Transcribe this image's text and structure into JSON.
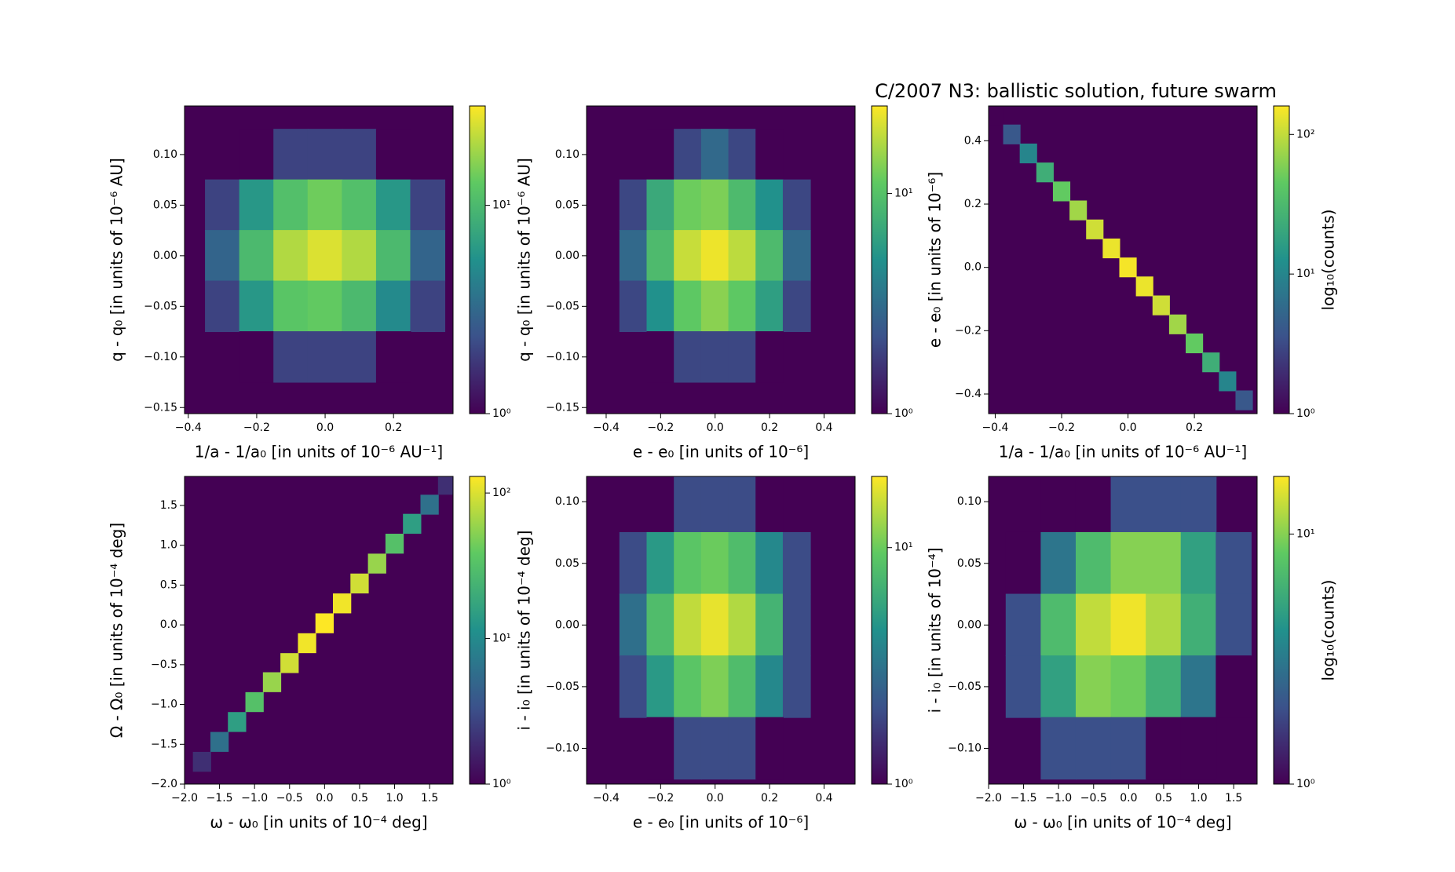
{
  "chart_data": [
    {
      "type": "hexbin",
      "xlabel": "1/a - 1/a₀ [in units of 10⁻⁶ AU⁻¹]",
      "ylabel": "q - q₀ [in units of 10⁻⁶ AU]",
      "xlim": [
        -0.411,
        0.374
      ],
      "ylim": [
        -0.156,
        0.148
      ],
      "xticks": [
        {
          "value": -0.4,
          "label": "−0.4"
        },
        {
          "value": -0.2,
          "label": "−0.2"
        },
        {
          "value": 0,
          "label": "0.0"
        },
        0.2
      ],
      "yticks": [
        {
          "value": -0.15,
          "label": "−0.15"
        },
        {
          "value": -0.1,
          "label": "−0.10"
        },
        {
          "value": -0.05,
          "label": "−0.05"
        },
        {
          "value": 0,
          "label": "0.00"
        },
        0.05,
        {
          "value": 0.1,
          "label": "0.10"
        }
      ],
      "x": [
        -0.2,
        -0.1,
        0,
        0.1,
        0.2,
        -0.3,
        -0.2,
        -0.1,
        0,
        0.1,
        0.2,
        0.3,
        -0.3,
        -0.2,
        -0.1,
        0,
        0.1,
        0.2,
        0.3,
        -0.3,
        -0.2,
        -0.1,
        0,
        0.1,
        0.2,
        0.3,
        -0.2,
        -0.1,
        0,
        0.1,
        0.2
      ],
      "y": [
        0.1,
        0.1,
        0.1,
        0.1,
        0.1,
        0.05,
        0.05,
        0.05,
        0.05,
        0.05,
        0.05,
        0.05,
        0,
        0,
        0,
        0,
        0,
        0,
        0,
        -0.05,
        -0.05,
        -0.05,
        -0.05,
        -0.05,
        -0.05,
        -0.05,
        -0.1,
        -0.1,
        -0.1,
        -0.1,
        -0.1
      ],
      "values": [
        1,
        2,
        2,
        2,
        1,
        2,
        6,
        11,
        14,
        11,
        6,
        2,
        3,
        10,
        20,
        25,
        20,
        10,
        3,
        2,
        6,
        12,
        13,
        10,
        5,
        2,
        1,
        2,
        2,
        2,
        1
      ],
      "colormap": "viridis",
      "color_scale": "log",
      "clim": [
        1,
        30
      ],
      "cticks": [
        {
          "value": 1,
          "label": "10⁰"
        },
        {
          "value": 10,
          "label": "10¹"
        }
      ]
    },
    {
      "type": "hexbin",
      "xlabel": "e - e₀ [in units of 10⁻⁶]",
      "ylabel": "q - q₀ [in units of 10⁻⁶ AU]",
      "xlim": [
        -0.472,
        0.514
      ],
      "ylim": [
        -0.156,
        0.148
      ],
      "xticks": [
        {
          "value": -0.4,
          "label": "−0.4"
        },
        {
          "value": -0.2,
          "label": "−0.2"
        },
        {
          "value": 0,
          "label": "0.0"
        },
        0.2,
        0.4
      ],
      "yticks": [
        {
          "value": -0.15,
          "label": "−0.15"
        },
        {
          "value": -0.1,
          "label": "−0.10"
        },
        {
          "value": -0.05,
          "label": "−0.05"
        },
        {
          "value": 0,
          "label": "0.00"
        },
        0.05,
        {
          "value": 0.1,
          "label": "0.10"
        }
      ],
      "x": [
        -0.2,
        -0.1,
        0,
        0.1,
        0.2,
        -0.3,
        -0.2,
        -0.1,
        0,
        0.1,
        0.2,
        0.3,
        -0.3,
        -0.2,
        -0.1,
        0,
        0.1,
        0.2,
        0.3,
        -0.3,
        -0.2,
        -0.1,
        0,
        0.1,
        0.2,
        0.3,
        -0.2,
        -0.1,
        0,
        0.1,
        0.2
      ],
      "y": [
        0.1,
        0.1,
        0.1,
        0.1,
        0.1,
        0.05,
        0.05,
        0.05,
        0.05,
        0.05,
        0.05,
        0.05,
        0,
        0,
        0,
        0,
        0,
        0,
        0,
        -0.05,
        -0.05,
        -0.05,
        -0.05,
        -0.05,
        -0.05,
        -0.05,
        -0.1,
        -0.1,
        -0.1,
        -0.1,
        -0.1
      ],
      "values": [
        1,
        2,
        3,
        2,
        1,
        2,
        7,
        12,
        13,
        9,
        5,
        2,
        3,
        9,
        19,
        23,
        18,
        9,
        3,
        2,
        5,
        11,
        14,
        11,
        6,
        2,
        1,
        2,
        2,
        2,
        1
      ],
      "colormap": "viridis",
      "color_scale": "log",
      "clim": [
        1,
        25
      ],
      "cticks": [
        {
          "value": 1,
          "label": "10⁰"
        },
        {
          "value": 10,
          "label": "10¹"
        }
      ]
    },
    {
      "type": "hexbin",
      "title": "C/2007 N3:  ballistic solution, future swarm",
      "xlabel": "1/a - 1/a₀ [in units of 10⁻⁶ AU⁻¹]",
      "ylabel": "e - e₀ [in units of 10⁻⁶]",
      "xlim": [
        -0.42,
        0.389
      ],
      "ylim": [
        -0.462,
        0.51
      ],
      "xticks": [
        {
          "value": -0.4,
          "label": "−0.4"
        },
        {
          "value": -0.2,
          "label": "−0.2"
        },
        {
          "value": 0,
          "label": "0.0"
        },
        0.2
      ],
      "yticks": [
        {
          "value": -0.4,
          "label": "−0.4"
        },
        {
          "value": -0.2,
          "label": "−0.2"
        },
        {
          "value": 0,
          "label": "0.0"
        },
        0.2,
        0.4
      ],
      "x": [
        -0.4,
        -0.35,
        -0.3,
        -0.25,
        -0.2,
        -0.15,
        -0.1,
        -0.05,
        0,
        0.05,
        0.1,
        0.15,
        0.2,
        0.25,
        0.3,
        0.35
      ],
      "y": [
        0.48,
        0.42,
        0.36,
        0.3,
        0.24,
        0.18,
        0.12,
        0.06,
        0,
        -0.06,
        -0.12,
        -0.18,
        -0.24,
        -0.3,
        -0.36,
        -0.42
      ],
      "values": [
        1,
        4,
        10,
        24,
        46,
        77,
        111,
        139,
        150,
        139,
        111,
        77,
        46,
        24,
        10,
        4
      ],
      "colormap": "viridis",
      "color_scale": "log",
      "clim": [
        1,
        160
      ],
      "clabel": "log₁₀(counts)",
      "cticks": [
        {
          "value": 1,
          "label": "10⁰"
        },
        {
          "value": 10,
          "label": "10¹"
        },
        {
          "value": 100,
          "label": "10²"
        }
      ]
    },
    {
      "type": "hexbin",
      "xlabel": "ω - ω₀ [in units of 10⁻⁴ deg]",
      "ylabel": "Ω - Ω₀ [in units of 10⁻⁴ deg]",
      "xlim": [
        -2.0,
        1.835
      ],
      "ylim": [
        -2.0,
        1.865
      ],
      "xticks": [
        {
          "value": -2,
          "label": "−2.0"
        },
        {
          "value": -1.5,
          "label": "−1.5"
        },
        {
          "value": -1,
          "label": "−1.0"
        },
        {
          "value": -0.5,
          "label": "−0.5"
        },
        {
          "value": 0,
          "label": "0.0"
        },
        0.5,
        {
          "value": 1,
          "label": "1.0"
        },
        1.5
      ],
      "yticks": [
        {
          "value": -2,
          "label": "−2.0"
        },
        {
          "value": -1.5,
          "label": "−1.5"
        },
        {
          "value": -1,
          "label": "−1.0"
        },
        {
          "value": -0.5,
          "label": "−0.5"
        },
        {
          "value": 0,
          "label": "0.0"
        },
        0.5,
        {
          "value": 1,
          "label": "1.0"
        },
        1.5
      ],
      "x": [
        -1.75,
        -1.5,
        -1.25,
        -1,
        -0.75,
        -0.5,
        -0.25,
        0,
        0.25,
        0.5,
        0.75,
        1,
        1.25,
        1.5,
        1.75
      ],
      "y": [
        -1.72,
        -1.47,
        -1.22,
        -0.97,
        -0.72,
        -0.48,
        -0.23,
        0.02,
        0.27,
        0.52,
        0.77,
        1.02,
        1.27,
        1.51,
        1.76
      ],
      "values": [
        2,
        6,
        15,
        32,
        60,
        92,
        119,
        130,
        119,
        92,
        60,
        32,
        15,
        6,
        2
      ],
      "colormap": "viridis",
      "color_scale": "log",
      "clim": [
        1,
        130
      ],
      "cticks": [
        {
          "value": 1,
          "label": "10⁰"
        },
        {
          "value": 10,
          "label": "10¹"
        },
        {
          "value": 100,
          "label": "10²"
        }
      ]
    },
    {
      "type": "hexbin",
      "xlabel": "e - e₀ [in units of 10⁻⁶]",
      "ylabel": "i - i₀ [in units of 10⁻⁴ deg]",
      "xlim": [
        -0.472,
        0.514
      ],
      "ylim": [
        -0.129,
        0.1205
      ],
      "xticks": [
        {
          "value": -0.4,
          "label": "−0.4"
        },
        {
          "value": -0.2,
          "label": "−0.2"
        },
        {
          "value": 0,
          "label": "0.0"
        },
        0.2,
        0.4
      ],
      "yticks": [
        {
          "value": -0.1,
          "label": "−0.10"
        },
        {
          "value": -0.05,
          "label": "−0.05"
        },
        {
          "value": 0,
          "label": "0.00"
        },
        0.05,
        {
          "value": 0.1,
          "label": "0.10"
        }
      ],
      "x": [
        -0.2,
        -0.1,
        0,
        0.1,
        0.2,
        -0.3,
        -0.2,
        -0.1,
        0,
        0.1,
        0.2,
        0.3,
        -0.3,
        -0.2,
        -0.1,
        0,
        0.1,
        0.2,
        0.3,
        -0.3,
        -0.2,
        -0.1,
        0,
        0.1,
        0.2,
        0.3,
        -0.2,
        -0.1,
        0,
        0.1,
        0.2
      ],
      "y": [
        0.1,
        0.1,
        0.1,
        0.1,
        0.1,
        0.05,
        0.05,
        0.05,
        0.05,
        0.05,
        0.05,
        0.05,
        0,
        0,
        0,
        0,
        0,
        0,
        0,
        -0.05,
        -0.05,
        -0.05,
        -0.05,
        -0.05,
        -0.05,
        -0.05,
        -0.1,
        -0.1,
        -0.1,
        -0.1,
        -0.1
      ],
      "values": [
        1,
        2,
        2,
        2,
        1,
        2,
        5,
        9,
        10,
        8,
        4,
        2,
        3,
        8,
        15,
        18,
        14,
        7,
        2,
        2,
        5,
        9,
        11,
        8,
        4,
        2,
        1,
        2,
        2,
        2,
        1
      ],
      "colormap": "viridis",
      "color_scale": "log",
      "clim": [
        1,
        20
      ],
      "cticks": [
        {
          "value": 1,
          "label": "10⁰"
        },
        {
          "value": 10,
          "label": "10¹"
        }
      ]
    },
    {
      "type": "hexbin",
      "xlabel": "ω - ω₀ [in units of 10⁻⁴ deg]",
      "ylabel": "i - i₀ [in units of 10⁻⁴]",
      "xlim": [
        -2.0,
        1.835
      ],
      "ylim": [
        -0.129,
        0.1205
      ],
      "xticks": [
        {
          "value": -2,
          "label": "−2.0"
        },
        {
          "value": -1.5,
          "label": "−1.5"
        },
        {
          "value": -1,
          "label": "−1.0"
        },
        {
          "value": -0.5,
          "label": "−0.5"
        },
        {
          "value": 0,
          "label": "0.0"
        },
        0.5,
        {
          "value": 1,
          "label": "1.0"
        },
        1.5
      ],
      "yticks": [
        {
          "value": -0.1,
          "label": "−0.10"
        },
        {
          "value": -0.05,
          "label": "−0.05"
        },
        {
          "value": 0,
          "label": "0.00"
        },
        0.05,
        {
          "value": 0.1,
          "label": "0.10"
        }
      ],
      "x": [
        -1,
        -0.5,
        0,
        0.5,
        1,
        -1.5,
        -1,
        -0.5,
        0,
        0.5,
        1,
        1.5,
        -1.5,
        -1,
        -0.5,
        0,
        0.5,
        1,
        1.5,
        -1.5,
        -1,
        -0.5,
        0,
        0.5,
        1,
        1.5,
        -1,
        -0.5,
        0,
        0.5,
        1
      ],
      "y": [
        0.1,
        0.1,
        0.1,
        0.1,
        0.1,
        0.05,
        0.05,
        0.05,
        0.05,
        0.05,
        0.05,
        0.05,
        0,
        0,
        0,
        0,
        0,
        0,
        0,
        -0.05,
        -0.05,
        -0.05,
        -0.05,
        -0.05,
        -0.05,
        -0.05,
        -0.1,
        -0.1,
        -0.1,
        -0.1,
        -0.1
      ],
      "values": [
        1,
        1,
        2,
        2,
        2,
        1,
        3,
        7,
        10,
        10,
        5,
        2,
        2,
        7,
        13,
        16,
        12,
        6,
        2,
        2,
        5,
        10,
        9,
        6,
        3,
        1,
        2,
        2,
        2,
        1,
        1
      ],
      "colormap": "viridis",
      "color_scale": "log",
      "clim": [
        1,
        17
      ],
      "clabel": "log₁₀(counts)",
      "cticks": [
        {
          "value": 1,
          "label": "10⁰"
        },
        {
          "value": 10,
          "label": "10¹"
        }
      ]
    }
  ]
}
